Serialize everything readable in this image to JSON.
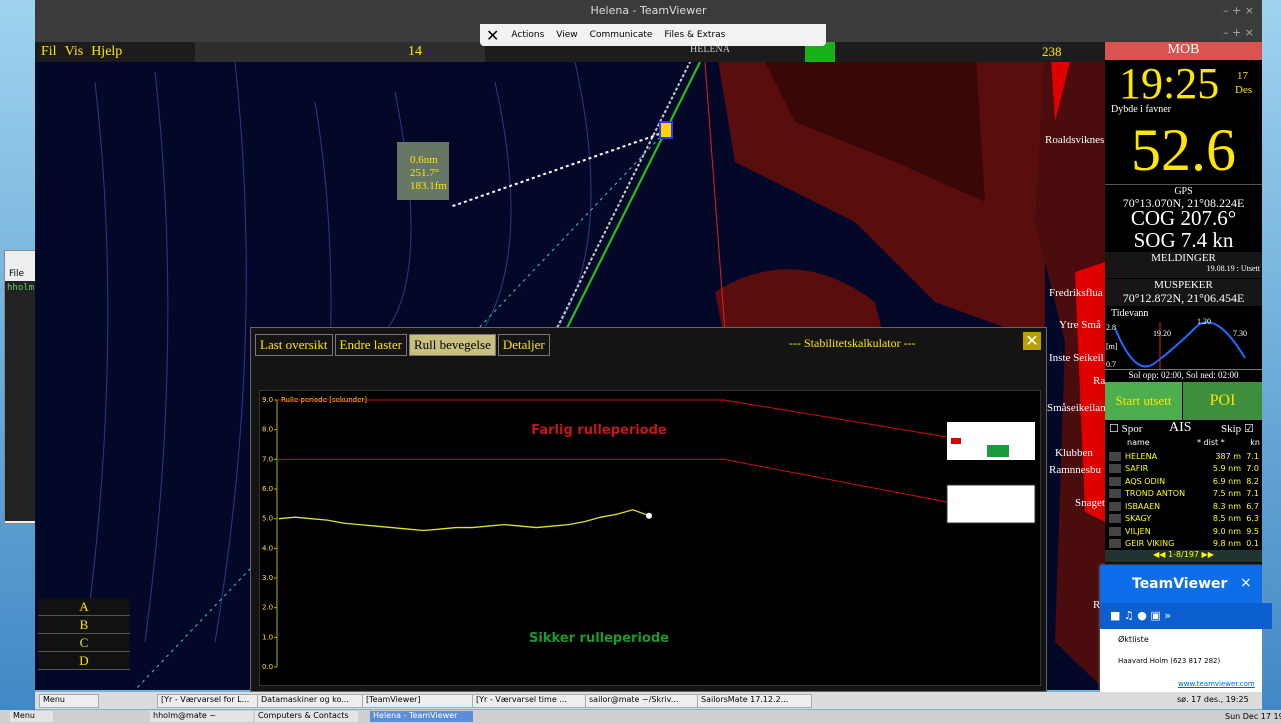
{
  "window_title": "Helena - TeamViewer",
  "tv_toolbar": [
    "Actions",
    "View",
    "Communicate",
    "Files & Extras"
  ],
  "menu": [
    "Fil",
    "Vis",
    "Hjelp"
  ],
  "toolbar": {
    "page": "14",
    "zoom": "238",
    "vessel": "HELENA"
  },
  "left_window": {
    "menu": "File",
    "text": "hholm"
  },
  "measure": [
    "0.6nm",
    "251.7°",
    "183.1fm"
  ],
  "map_labels": [
    "Roaldsviknes",
    "Fredriksflua",
    "Ytre Små",
    "Inste Seikeil",
    "Ra",
    "Småseikeilan",
    "Klubben",
    "Ramnnesbu",
    "Snaget",
    "R"
  ],
  "layers": [
    "A",
    "B",
    "C",
    "D"
  ],
  "panel": {
    "mob": "MOB",
    "time": "19:25",
    "day": "17",
    "month": "Des",
    "depth_label": "Dybde i favner",
    "depth": "52.6",
    "gps_label": "GPS",
    "gps": "70°13.070N, 21°08.224E",
    "cog": "COG 207.6°",
    "sog": "SOG 7.4 kn",
    "messages_label": "MELDINGER",
    "message": "19.08.19 : Utsett",
    "pointer_label": "MUSPEKER",
    "pointer": "70°12.872N, 21°06.454E",
    "tide": {
      "title": "Tidevann",
      "max": "2.8",
      "unit": "[m]",
      "min": "0.7",
      "t1": "19.20",
      "t2": "1.20",
      "t3": "7.30",
      "sun": "Sol opp: 02:00, Sol ned: 02:00"
    },
    "start_button": "Start utsett",
    "poi_button": "POI",
    "track": "Spor",
    "ais": "AIS",
    "ship": "Skip",
    "ais_header": [
      "name",
      "* dist *",
      "kn"
    ],
    "ais_rows": [
      [
        "HELENA",
        "387 m",
        "7.1"
      ],
      [
        "SAFIR",
        "5.9 nm",
        "7.0"
      ],
      [
        "AQS ODIN",
        "6.9 nm",
        "8.2"
      ],
      [
        "TROND ANTON",
        "7.5 nm",
        "7.1"
      ],
      [
        "ISBAAEN",
        "8.3 nm",
        "6.7"
      ],
      [
        "SKAGY",
        "8.5 nm",
        "6.3"
      ],
      [
        "VILJEN",
        "9.0 nm",
        "9.5"
      ],
      [
        "GEIR VIKING",
        "9.8 nm",
        "0.1"
      ]
    ],
    "ais_page": "1-8/197"
  },
  "dialog": {
    "tabs": [
      "Last oversikt",
      "Endre laster",
      "Rull bevegelse",
      "Detaljer"
    ],
    "title": "--- Stabilitetskalkulator ---",
    "chart": {
      "axis_label": "Rulle periode [sekunder]",
      "ylim": [
        0,
        9
      ],
      "yticks": [
        {
          "value": 0,
          "label": "0.0"
        },
        {
          "value": 1,
          "label": "1.0"
        },
        {
          "value": 2,
          "label": "2.0"
        },
        {
          "value": 3,
          "label": "3.0"
        },
        {
          "value": 4,
          "label": "4.0"
        },
        {
          "value": 5,
          "label": "5.0"
        },
        {
          "value": 6,
          "label": "6.0"
        },
        {
          "value": 7,
          "label": "7.0"
        },
        {
          "value": 8,
          "label": "8.0"
        },
        {
          "value": 9,
          "label": "9.0"
        }
      ],
      "limits": [
        9,
        7
      ],
      "values": [
        5.0,
        5.05,
        5.0,
        4.95,
        4.85,
        4.8,
        4.75,
        4.7,
        4.65,
        4.6,
        4.65,
        4.7,
        4.7,
        4.75,
        4.8,
        4.75,
        4.7,
        4.75,
        4.8,
        4.9,
        5.05,
        5.15,
        5.3,
        5.1
      ],
      "danger": "Farlig rulleperiode",
      "safe": "Sikker rulleperiode"
    }
  },
  "tv_panel": {
    "brand": "TeamViewer",
    "session": "Øktliste",
    "contact": "Haavard Holm (623 817 282)",
    "link": "www.teamviewer.com"
  },
  "taskbar_inner": {
    "items": [
      "Menu",
      "[Yr - Værvarsel for L...",
      "Datamaskiner og ko...",
      "[TeamViewer]",
      "[Yr - Værvarsel time ...",
      "sailor@mate ~/Skriv...",
      "SailorsMate 17.12.2..."
    ],
    "clock": "sø. 17 des., 19:25"
  },
  "taskbar_outer": {
    "items": [
      "Menu",
      "hholm@mate ~",
      "Computers & Contacts",
      "Helena - TeamViewer"
    ],
    "clock": "Sun Dec 17 19:"
  }
}
